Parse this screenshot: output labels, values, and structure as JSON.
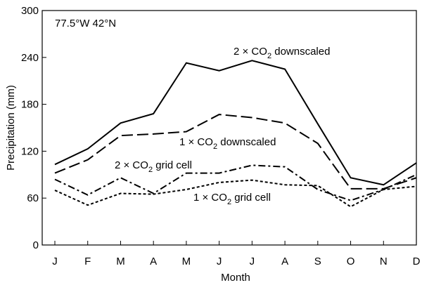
{
  "chart_data": {
    "type": "line",
    "title": "",
    "xlabel": "Month",
    "ylabel": "Precipitation (mm)",
    "annotation": "77.5°W 42°N",
    "categories": [
      "J",
      "F",
      "M",
      "A",
      "M",
      "J",
      "J",
      "A",
      "S",
      "O",
      "N",
      "D"
    ],
    "ylim": [
      0,
      300
    ],
    "yticks": [
      0,
      60,
      120,
      180,
      240,
      300
    ],
    "grid": false,
    "series": [
      {
        "name": "2 × CO2 downscaled",
        "label_main": "2 × CO",
        "label_sub": "2",
        "label_rest": " downscaled",
        "style": "solid",
        "values": [
          103,
          123,
          156,
          168,
          233,
          223,
          236,
          225,
          155,
          86,
          77,
          105
        ]
      },
      {
        "name": "1 × CO2 downscaled",
        "label_main": "1 × CO",
        "label_sub": "2",
        "label_rest": " downscaled",
        "style": "long-dash",
        "values": [
          92,
          109,
          140,
          142,
          145,
          167,
          163,
          156,
          130,
          72,
          72,
          86
        ]
      },
      {
        "name": "2 × CO2 grid cell",
        "label_main": "2 × CO",
        "label_sub": "2",
        "label_rest": " grid cell",
        "style": "dash-dot",
        "values": [
          84,
          64,
          86,
          66,
          92,
          92,
          102,
          100,
          71,
          57,
          71,
          90
        ]
      },
      {
        "name": "1 × CO2 grid cell",
        "label_main": "1 × CO",
        "label_sub": "2",
        "label_rest": "  grid cell",
        "style": "dotted",
        "values": [
          70,
          51,
          66,
          65,
          71,
          80,
          83,
          77,
          76,
          49,
          71,
          75
        ]
      }
    ]
  }
}
